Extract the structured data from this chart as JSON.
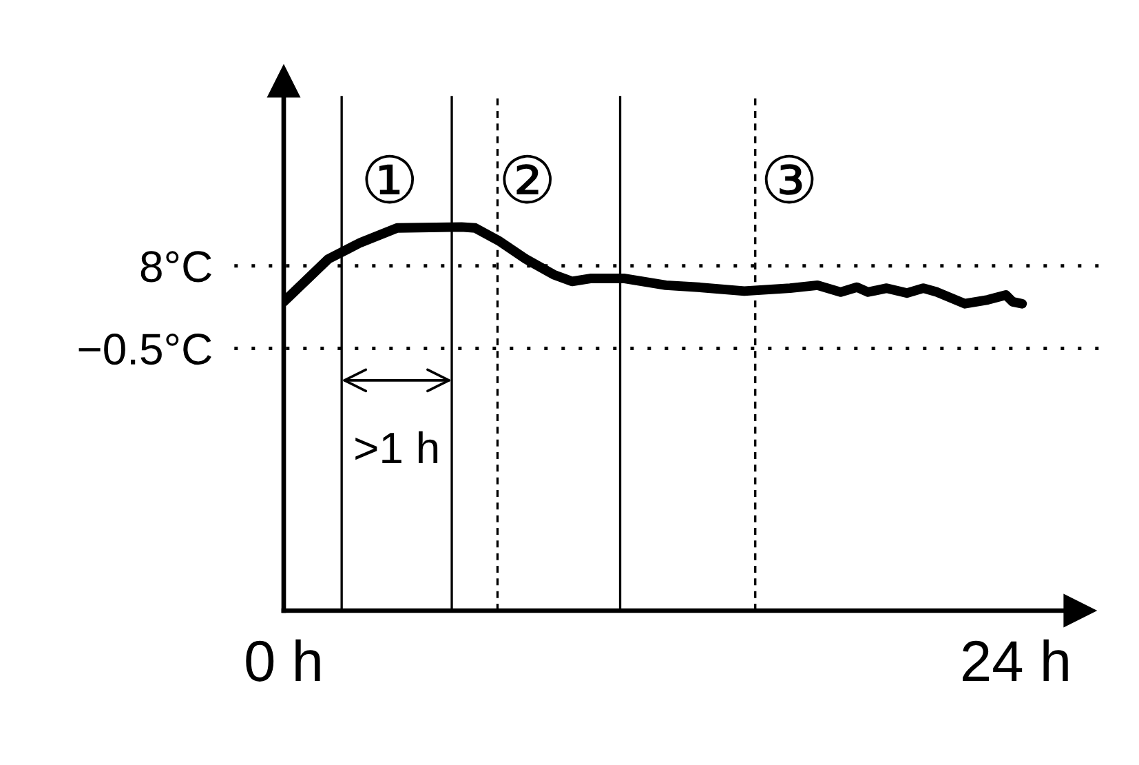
{
  "chart_data": {
    "type": "line",
    "x": [
      0,
      1.46,
      2.52,
      3.72,
      5.83,
      6.28,
      7.04,
      7.94,
      8.85,
      9.45,
      10.05,
      11.18,
      12.53,
      13.59,
      15.1,
      16.6,
      17.5,
      18.26,
      18.79,
      19.16,
      19.77,
      20.44,
      20.97,
      21.42,
      22.33,
      23.08,
      23.68,
      23.9,
      24.21
    ],
    "series": [
      {
        "color": "#000000",
        "values": [
          4.3,
          8.7,
          10.4,
          11.9,
          12.0,
          11.9,
          10.6,
          8.7,
          7.1,
          6.4,
          6.7,
          6.7,
          6.0,
          5.8,
          5.4,
          5.7,
          6.0,
          5.3,
          5.8,
          5.3,
          5.7,
          5.2,
          5.7,
          5.3,
          4.1,
          4.5,
          5.0,
          4.3,
          4.1
        ]
      }
    ],
    "xlim": [
      0,
      26.1
    ],
    "ylim": [
      -27.5,
      27
    ],
    "xticks": [
      {
        "value": 0,
        "label": "0 h"
      },
      {
        "value": 24,
        "label": "24 h"
      }
    ],
    "yticks": [
      {
        "value": 8,
        "label": "8°C"
      },
      {
        "value": -0.5,
        "label": "−0.5°C"
      }
    ],
    "ref_lines": [
      {
        "axis": "y",
        "value": 8,
        "line_style": "dotted"
      },
      {
        "axis": "y",
        "value": -0.5,
        "line_style": "dotted"
      },
      {
        "axis": "x",
        "value": 1.9,
        "line_style": "solid"
      },
      {
        "axis": "x",
        "value": 5.51,
        "line_style": "solid"
      },
      {
        "axis": "x",
        "value": 7.01,
        "line_style": "dashed"
      },
      {
        "axis": "x",
        "value": 11.03,
        "line_style": "solid"
      },
      {
        "axis": "x",
        "value": 15.46,
        "line_style": "dashed"
      }
    ],
    "annotations": [
      "①",
      "②",
      "③",
      ">1 h"
    ],
    "grid": false,
    "marker": "none",
    "line_style": "solid"
  }
}
